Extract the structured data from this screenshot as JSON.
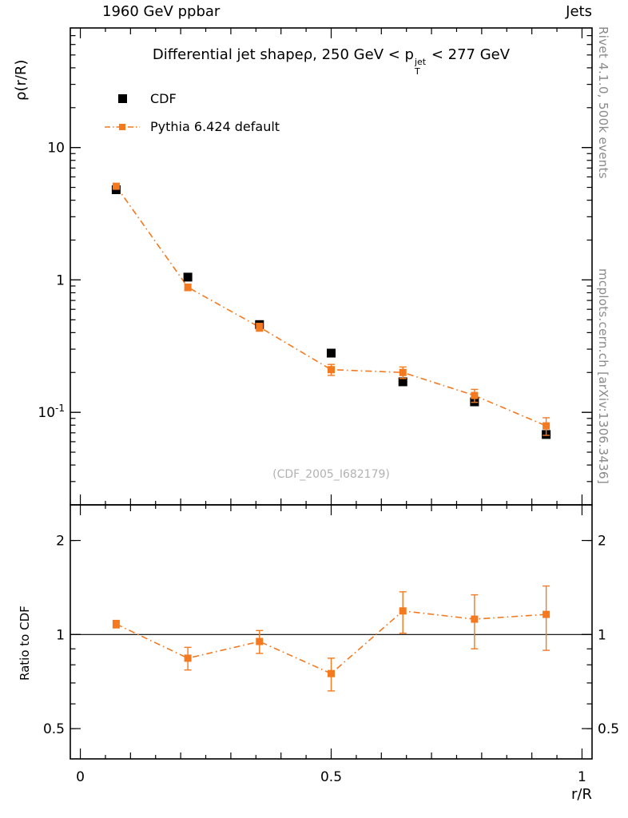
{
  "header": {
    "left": "1960 GeV ppbar",
    "right": "Jets"
  },
  "side_notes": {
    "rivet": "Rivet 4.1.0,  500k events",
    "mcplots": "mcplots.cern.ch [arXiv:1306.3436]"
  },
  "watermark": "(CDF_2005_I682179)",
  "title": {
    "part1": "Differential jet shapeρ, 250 GeV < p",
    "sup": "jet",
    "sub": "T",
    "part2": " < 277 GeV"
  },
  "legend": {
    "items": [
      {
        "label": "CDF"
      },
      {
        "label": "Pythia 6.424 default"
      }
    ]
  },
  "labels": {
    "main_ylabel": "ρ(r/R)",
    "ratio_ylabel": "Ratio to CDF",
    "xlabel": "r/R"
  },
  "colors": {
    "pythia_orange": "#f4791f",
    "cdf_black": "#000000"
  },
  "chart_data": [
    {
      "type": "scatter",
      "panel": "main",
      "title": "Differential jet shape ρ, 250 GeV < pT^jet < 277 GeV",
      "xlabel": "r/R",
      "ylabel": "ρ(r/R)",
      "yscale": "log",
      "xlim": [
        -0.02,
        1.02
      ],
      "ylim": [
        0.02,
        80
      ],
      "x": [
        0.0714,
        0.2143,
        0.3571,
        0.5,
        0.6429,
        0.7857,
        0.9286
      ],
      "series": [
        {
          "name": "CDF",
          "marker": "filled-square",
          "color": "#000000",
          "values": [
            4.8,
            1.05,
            0.46,
            0.28,
            0.17,
            0.12,
            0.068
          ]
        },
        {
          "name": "Pythia 6.424 default",
          "marker": "filled-square",
          "color": "#f4791f",
          "linestyle": "dash-dot",
          "values": [
            5.1,
            0.88,
            0.44,
            0.21,
            0.2,
            0.134,
            0.079
          ],
          "yerr": [
            0.2,
            0.05,
            0.03,
            0.02,
            0.02,
            0.015,
            0.012
          ]
        }
      ],
      "yticks": [
        {
          "v": 10,
          "label": "10"
        },
        {
          "v": 1,
          "label": "1"
        },
        {
          "v": 0.1,
          "label": "10",
          "sup": "-1"
        }
      ],
      "xticks": [
        {
          "v": 0,
          "label": "0"
        },
        {
          "v": 0.5,
          "label": "0.5"
        },
        {
          "v": 1,
          "label": "1"
        }
      ]
    },
    {
      "type": "line",
      "panel": "ratio",
      "ylabel": "Ratio to CDF",
      "yscale": "log",
      "xlim": [
        -0.02,
        1.02
      ],
      "ylim": [
        0.4,
        2.6
      ],
      "x": [
        0.0714,
        0.2143,
        0.3571,
        0.5,
        0.6429,
        0.7857,
        0.9286
      ],
      "series": [
        {
          "name": "Pythia 6.424 default / CDF",
          "marker": "filled-square",
          "color": "#f4791f",
          "linestyle": "dash-dot",
          "values": [
            1.08,
            0.84,
            0.95,
            0.75,
            1.19,
            1.12,
            1.16
          ],
          "yerr": [
            0.03,
            0.07,
            0.08,
            0.09,
            0.18,
            0.22,
            0.27
          ]
        }
      ],
      "yticks": [
        {
          "v": 2,
          "label": "2"
        },
        {
          "v": 1,
          "label": "1"
        },
        {
          "v": 0.5,
          "label": "0.5"
        }
      ],
      "refline": 1
    }
  ]
}
